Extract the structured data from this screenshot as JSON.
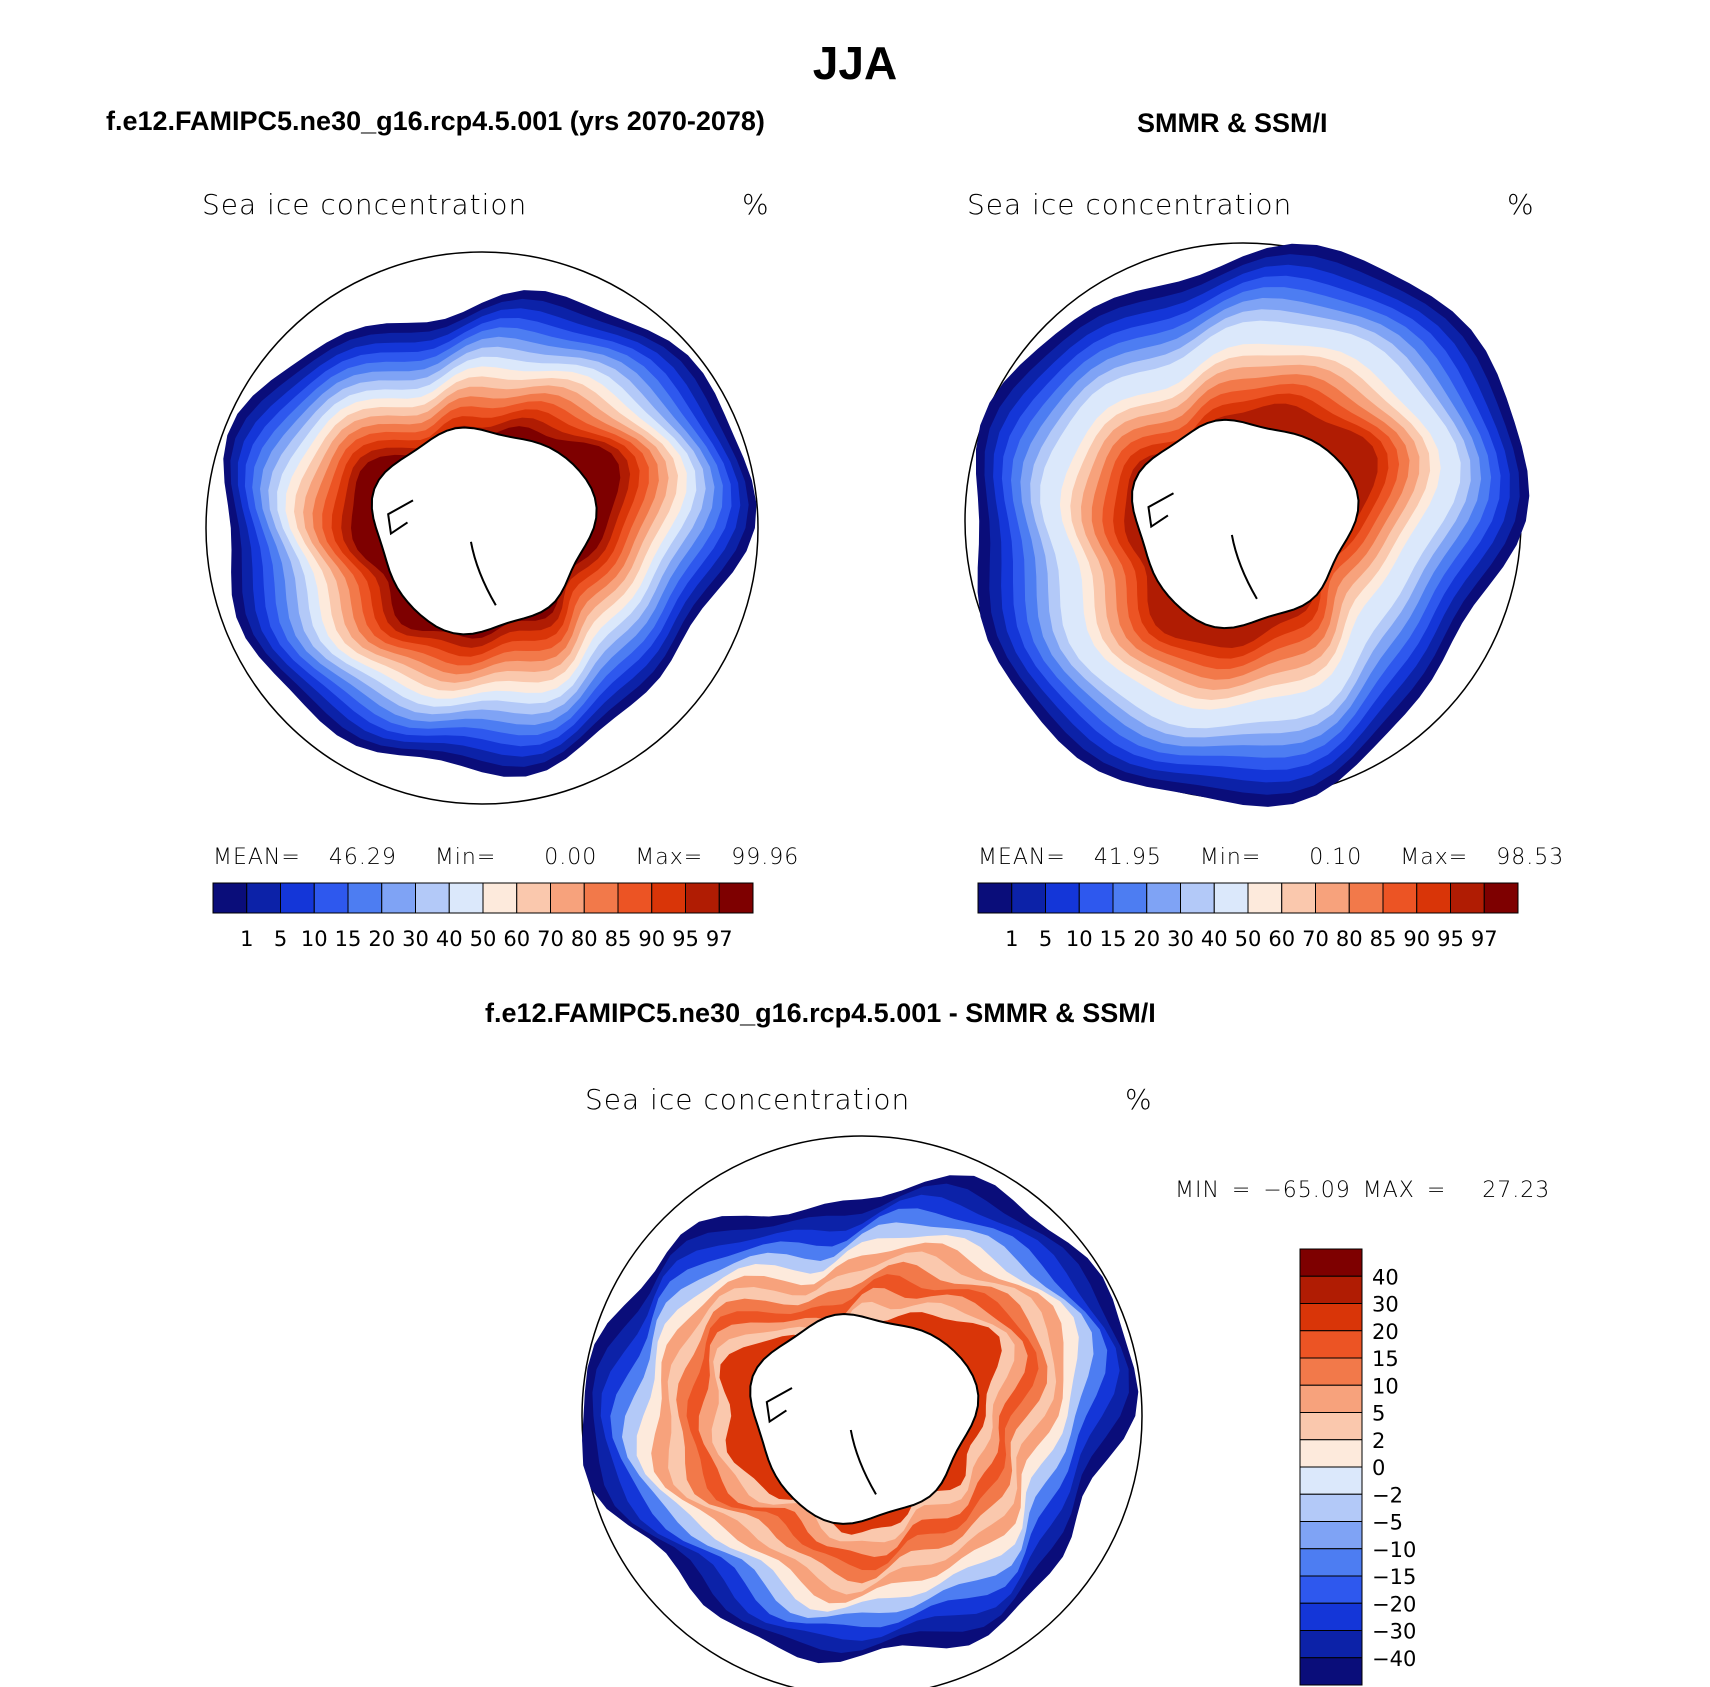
{
  "title": "JJA",
  "colors": {
    "scale": [
      "#0a0d7a",
      "#0c22a8",
      "#1436d8",
      "#2e58ee",
      "#4d7df2",
      "#7fa3f5",
      "#b3c9f8",
      "#dbe8fb",
      "#fdeadc",
      "#fac8ad",
      "#f7a27c",
      "#f2794a",
      "#ec5424",
      "#d93508",
      "#b01c03",
      "#7e0000"
    ],
    "ice_land_outline": "#000000"
  },
  "top_panels": [
    {
      "title": "f.e12.FAMIPC5.ne30_g16.rcp4.5.001 (yrs 2070-2078)",
      "map_title": "Sea ice concentration",
      "units": "%",
      "stats": {
        "mean_label": "MEAN=",
        "mean": "46.29",
        "min_label": "Min=",
        "min": "0.00",
        "max_label": "Max=",
        "max": "99.96"
      },
      "colorbar_labels": [
        "1",
        "5",
        "10",
        "15",
        "20",
        "30",
        "40",
        "50",
        "60",
        "70",
        "80",
        "85",
        "90",
        "95",
        "97"
      ]
    },
    {
      "title": "SMMR & SSM/I",
      "map_title": "Sea ice concentration",
      "units": "%",
      "stats": {
        "mean_label": "MEAN=",
        "mean": "41.95",
        "min_label": "Min=",
        "min": "0.10",
        "max_label": "Max=",
        "max": "98.53"
      },
      "colorbar_labels": [
        "1",
        "5",
        "10",
        "15",
        "20",
        "30",
        "40",
        "50",
        "60",
        "70",
        "80",
        "85",
        "90",
        "95",
        "97"
      ]
    }
  ],
  "diff_panel": {
    "title": "f.e12.FAMIPC5.ne30_g16.rcp4.5.001 - SMMR & SSM/I",
    "map_title": "Sea ice concentration",
    "units": "%",
    "min_max": "MIN = −65.09 MAX =   27.23",
    "colorbar_labels": [
      "40",
      "30",
      "20",
      "15",
      "10",
      "5",
      "2",
      "0",
      "−2",
      "−5",
      "−10",
      "−15",
      "−20",
      "−30",
      "−40"
    ]
  }
}
